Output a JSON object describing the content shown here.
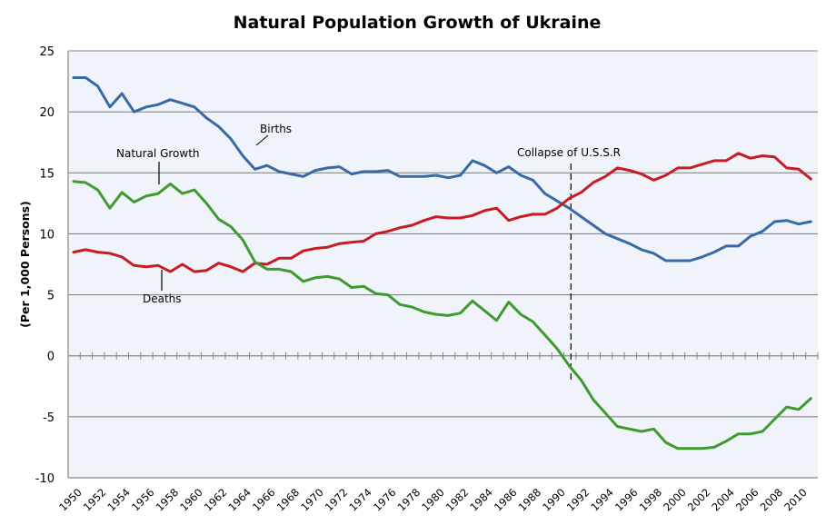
{
  "chart_data": {
    "type": "line",
    "title": "Natural Population Growth of Ukraine",
    "xlabel": "",
    "ylabel": "(Per 1,000 Persons)",
    "ylim": [
      -10,
      25
    ],
    "yticks": [
      25,
      20,
      15,
      10,
      5,
      0,
      -5,
      -10
    ],
    "ytick_labels": [
      "25",
      "20",
      "15",
      "10",
      "5",
      "0",
      "-5",
      "-10"
    ],
    "xlim": [
      1950,
      2011
    ],
    "xtick_labels": [
      "1950",
      "1952",
      "1954",
      "1956",
      "1958",
      "1960",
      "1962",
      "1964",
      "1966",
      "1968",
      "1970",
      "1972",
      "1974",
      "1976",
      "1978",
      "1980",
      "1982",
      "1984",
      "1986",
      "1988",
      "1990",
      "1992",
      "1994",
      "1996",
      "1998",
      "2000",
      "2002",
      "2004",
      "2006",
      "2008",
      "2010"
    ],
    "grid": "horizontal",
    "x": [
      1950,
      1951,
      1952,
      1953,
      1954,
      1955,
      1956,
      1957,
      1958,
      1959,
      1960,
      1961,
      1962,
      1963,
      1964,
      1965,
      1966,
      1967,
      1968,
      1969,
      1970,
      1971,
      1972,
      1973,
      1974,
      1975,
      1976,
      1977,
      1978,
      1979,
      1980,
      1981,
      1982,
      1983,
      1984,
      1985,
      1986,
      1987,
      1988,
      1989,
      1990,
      1991,
      1992,
      1993,
      1994,
      1995,
      1996,
      1997,
      1998,
      1999,
      2000,
      2001,
      2002,
      2003,
      2004,
      2005,
      2006,
      2007,
      2008,
      2009,
      2010,
      2011
    ],
    "series": [
      {
        "name": "Births",
        "color": "#376aa6",
        "values": [
          22.8,
          22.8,
          22.1,
          20.4,
          21.5,
          20.0,
          20.4,
          20.6,
          21.0,
          20.7,
          20.4,
          19.5,
          18.8,
          17.8,
          16.4,
          15.3,
          15.6,
          15.1,
          14.9,
          14.7,
          15.2,
          15.4,
          15.5,
          14.9,
          15.1,
          15.1,
          15.2,
          14.7,
          14.7,
          14.7,
          14.8,
          14.6,
          14.8,
          16.0,
          15.6,
          15.0,
          15.5,
          14.8,
          14.4,
          13.3,
          12.7,
          12.1,
          11.4,
          10.7,
          10.0,
          9.6,
          9.2,
          8.7,
          8.4,
          7.8,
          7.8,
          7.8,
          8.1,
          8.5,
          9.0,
          9.0,
          9.8,
          10.2,
          11.0,
          11.1,
          10.8,
          11.0
        ]
      },
      {
        "name": "Deaths",
        "color": "#c81c25",
        "values": [
          8.5,
          8.7,
          8.5,
          8.4,
          8.1,
          7.4,
          7.3,
          7.4,
          6.9,
          7.5,
          6.9,
          7.0,
          7.6,
          7.3,
          6.9,
          7.6,
          7.5,
          8.0,
          8.0,
          8.6,
          8.8,
          8.9,
          9.2,
          9.3,
          9.4,
          10.0,
          10.2,
          10.5,
          10.7,
          11.1,
          11.4,
          11.3,
          11.3,
          11.5,
          11.9,
          12.1,
          11.1,
          11.4,
          11.6,
          11.6,
          12.1,
          12.9,
          13.4,
          14.2,
          14.7,
          15.4,
          15.2,
          14.9,
          14.4,
          14.8,
          15.4,
          15.4,
          15.7,
          16.0,
          16.0,
          16.6,
          16.2,
          16.4,
          16.3,
          15.4,
          15.3,
          14.5
        ]
      },
      {
        "name": "Natural Growth",
        "color": "#3f9a30",
        "values": [
          14.3,
          14.2,
          13.6,
          12.1,
          13.4,
          12.6,
          13.1,
          13.3,
          14.1,
          13.3,
          13.6,
          12.5,
          11.2,
          10.6,
          9.5,
          7.7,
          7.1,
          7.1,
          6.9,
          6.1,
          6.4,
          6.5,
          6.3,
          5.6,
          5.7,
          5.1,
          5.0,
          4.2,
          4.0,
          3.6,
          3.4,
          3.3,
          3.5,
          4.5,
          3.7,
          2.9,
          4.4,
          3.4,
          2.8,
          1.7,
          0.6,
          -0.8,
          -2.0,
          -3.6,
          -4.7,
          -5.8,
          -6.0,
          -6.2,
          -6.0,
          -7.1,
          -7.6,
          -7.6,
          -7.6,
          -7.5,
          -7.0,
          -6.4,
          -6.4,
          -6.2,
          -5.2,
          -4.2,
          -4.4,
          -3.5
        ]
      }
    ],
    "annotations": [
      {
        "text": "Births",
        "series": "Births",
        "x": 1966
      },
      {
        "text": "Natural Growth",
        "series": "Natural Growth",
        "x": 1957
      },
      {
        "text": "Deaths",
        "series": "Deaths",
        "x": 1957
      },
      {
        "text": "Collapse of U.S.S.R",
        "type": "vertical-dashed-line",
        "x": 1991
      }
    ]
  }
}
